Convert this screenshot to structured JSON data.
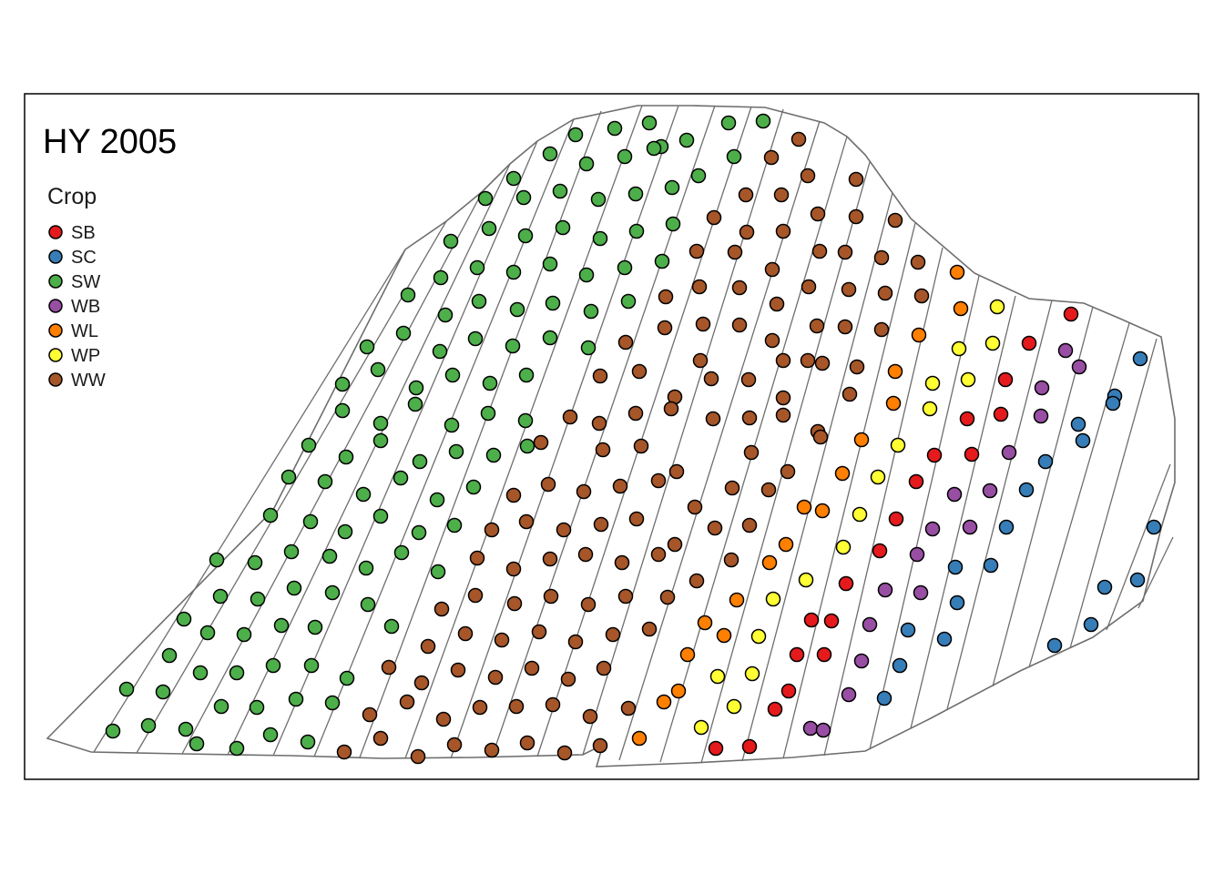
{
  "title": "HY 2005",
  "legend": {
    "title": "Crop",
    "items": [
      {
        "label": "SB",
        "color": "#e41a1c"
      },
      {
        "label": "SC",
        "color": "#377eb8"
      },
      {
        "label": "SW",
        "color": "#4daf4a"
      },
      {
        "label": "WB",
        "color": "#984ea3"
      },
      {
        "label": "WL",
        "color": "#ff7f00"
      },
      {
        "label": "WP",
        "color": "#ffff33"
      },
      {
        "label": "WW",
        "color": "#a65628"
      }
    ]
  },
  "colors": {
    "outline": "#6e6e6e",
    "frame": "#000000",
    "point_stroke": "#000000"
  }
}
